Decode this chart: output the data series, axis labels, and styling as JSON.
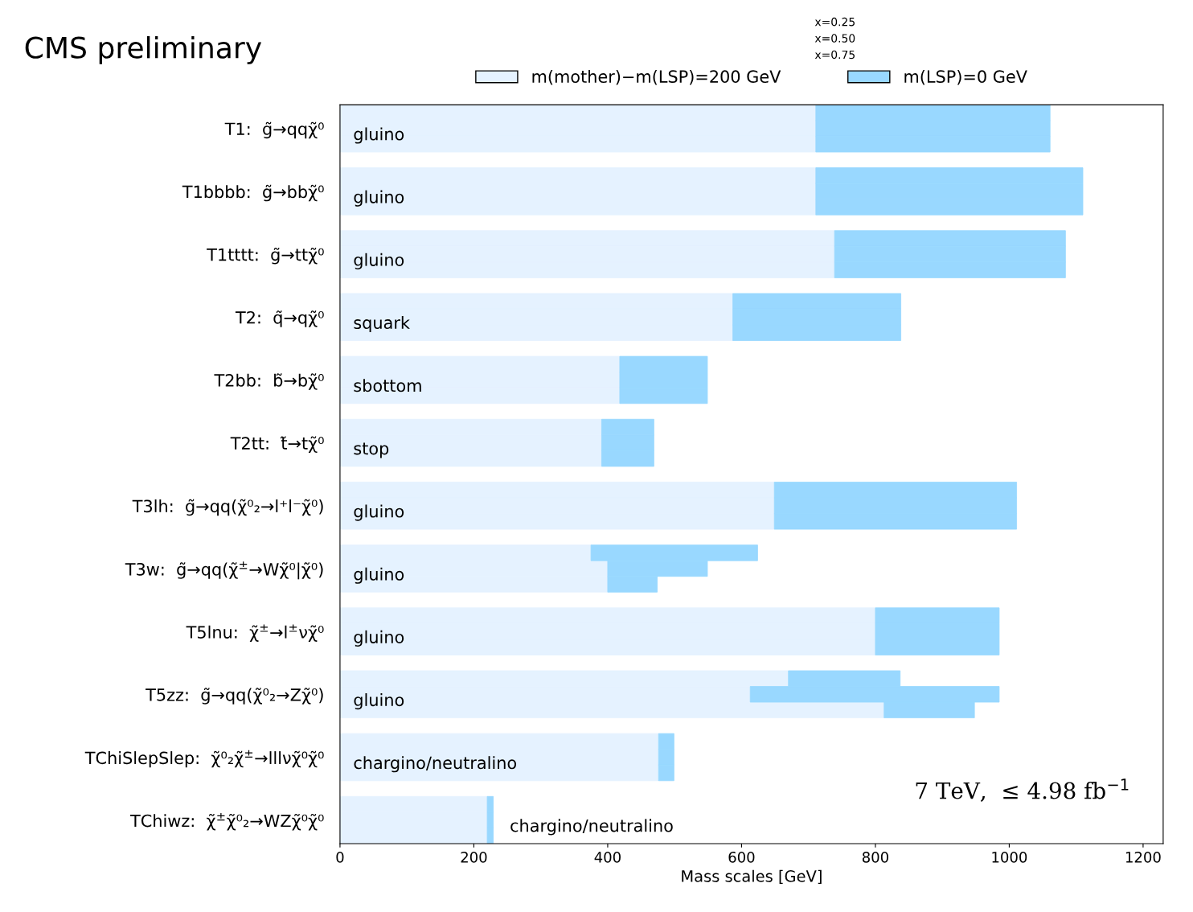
{
  "chart_data": {
    "type": "bar",
    "orientation": "horizontal",
    "stacked": true,
    "title": "CMS preliminary",
    "xlabel": "Mass scales [GeV]",
    "categories": [
      null,
      "T1:  g̃→qqχ̃⁰",
      null,
      null,
      null,
      "T1bbbb:  g̃→bbχ̃⁰",
      null,
      null,
      null,
      "T1tttt:  g̃→ttχ̃⁰",
      null,
      null,
      null,
      "T2:  q̃→qχ̃⁰",
      null,
      null,
      null,
      "T2bb:  b̃→bχ̃⁰",
      null,
      null,
      null,
      "T2tt:  t̃→tχ̃⁰",
      null,
      null,
      null,
      "T3lh:  g̃→qq(χ̃⁰₂→l⁺l⁻χ̃⁰)",
      null,
      null,
      null,
      "T3w:  g̃→qq(χ̃$^{±}$→Wχ̃⁰|χ̃⁰)",
      null,
      null,
      null,
      "T5lnu:  χ̃$^{±}$→l$^{±}$νχ̃⁰",
      null,
      null,
      null,
      "T5zz:  g̃→qq(χ̃⁰₂→Zχ̃⁰)",
      null,
      null,
      null,
      "TChiSlepSlep:  χ̃⁰₂χ̃$^{±}$→lllνχ̃⁰χ̃⁰",
      null,
      null,
      null,
      "TChiwz:  χ̃$^{±}$χ̃⁰₂→WZχ̃⁰χ̃⁰",
      null
    ],
    "series": [
      {
        "name": "m(mother)−m(LSP)=200 GeV",
        "color": "#e5f2ff",
        "values": [
          711,
          711,
          711,
          null,
          711,
          711,
          711,
          null,
          739,
          739,
          739,
          null,
          587,
          587,
          587,
          null,
          418,
          418,
          418,
          null,
          391,
          391,
          391,
          null,
          649,
          649,
          649,
          null,
          375,
          400,
          400,
          null,
          800,
          800,
          800,
          null,
          670,
          613,
          813,
          null,
          476,
          476,
          476,
          null,
          220,
          220,
          220
        ]
      },
      {
        "name": "m(LSP)=0 GeV",
        "color": "#99d8ff",
        "values": [
          350,
          350,
          350,
          null,
          399,
          399,
          399,
          null,
          345,
          345,
          345,
          null,
          251,
          251,
          251,
          null,
          131,
          131,
          131,
          null,
          78,
          78,
          78,
          null,
          362,
          362,
          362,
          null,
          249,
          149,
          74,
          null,
          185,
          185,
          185,
          null,
          167,
          372,
          135,
          null,
          23,
          23,
          23,
          null,
          9,
          9,
          9
        ]
      }
    ],
    "xlim": [
      0,
      1230
    ],
    "xticks": [
      0,
      200,
      400,
      600,
      800,
      1000,
      1200
    ],
    "legend": "top",
    "annotations": [
      "x=0.25",
      "x=0.50",
      "x=0.75",
      "7 TeV,  ≤ 4.98 fb$^{−1}$",
      "gluino",
      "gluino",
      "gluino",
      "squark",
      "sbottom",
      "stop",
      "gluino",
      "gluino",
      "gluino",
      "gluino",
      "chargino/neutralino",
      "chargino/neutralino"
    ]
  }
}
